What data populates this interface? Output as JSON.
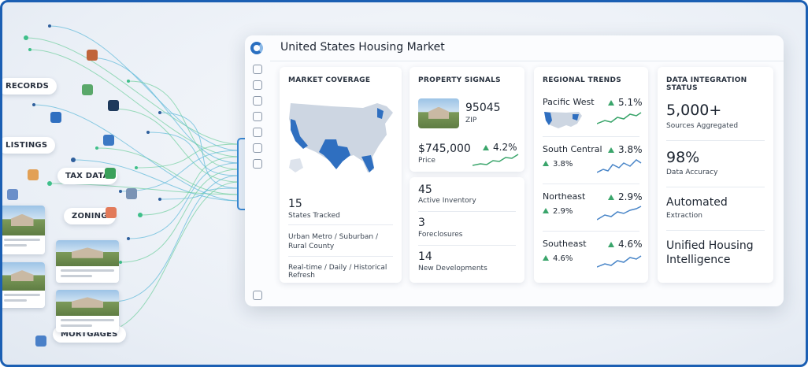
{
  "sources": [
    "RECORDS",
    "LISTINGS",
    "TAX DATA",
    "ZONING",
    "MORTGAGES"
  ],
  "dashboard": {
    "title": "United States Housing Market",
    "market_coverage": {
      "heading": "MARKET COVERAGE",
      "states_count": "15",
      "states_label": "States Tracked",
      "segments": "Urban Metro / Suburban / Rural County",
      "refresh": "Real-time / Daily / Historical Refresh"
    },
    "property_signals": {
      "heading": "PROPERTY SIGNALS",
      "zip": "95045",
      "zip_label": "ZIP",
      "price": "$745,000",
      "price_label": "Price",
      "change": "4.2%"
    },
    "inventory": [
      {
        "value": "45",
        "label": "Active Inventory"
      },
      {
        "value": "3",
        "label": "Foreclosures"
      },
      {
        "value": "14",
        "label": "New Developments"
      }
    ],
    "regional_trends": {
      "heading": "REGIONAL TRENDS",
      "regions": [
        {
          "name": "Pacific West",
          "change": "5.1%"
        },
        {
          "name": "South Central",
          "change": "3.8%",
          "change_secondary": "3.8%"
        },
        {
          "name": "Northeast",
          "change": "2.9%",
          "change_secondary": "2.9%"
        },
        {
          "name": "Southeast",
          "change": "4.6%",
          "change_secondary": "4.6%"
        }
      ]
    },
    "data_integration": {
      "heading": "DATA INTEGRATION STATUS",
      "items": [
        {
          "value": "5,000+",
          "label": "Sources Aggregated"
        },
        {
          "value": "98%",
          "label": "Data Accuracy"
        },
        {
          "value": "Automated",
          "label": "Extraction"
        },
        {
          "value": "Unified Housing Intelligence"
        }
      ]
    }
  }
}
